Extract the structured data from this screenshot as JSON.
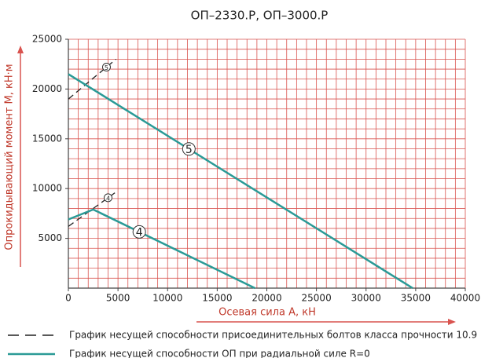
{
  "chart_data": {
    "type": "line",
    "title": "ОП–2330.Р, ОП–3000.Р",
    "x_label": "Осевая сила А, кН",
    "y_label": "Опрокидывающий момент М, кН·м",
    "xlim": [
      0,
      40000
    ],
    "ylim": [
      0,
      25000
    ],
    "xticks": [
      0,
      5000,
      10000,
      15000,
      20000,
      25000,
      30000,
      35000,
      40000
    ],
    "yticks": [
      5000,
      10000,
      15000,
      20000,
      25000
    ],
    "grid": true,
    "minor_grid_step": 1000,
    "grid_color": "#d9534f",
    "series": [
      {
        "name": "График несущей способности присоединительных болтов класса прочности 10.9",
        "color": "#222222",
        "dashed": true,
        "curves": [
          {
            "label": "5",
            "x": [
              0,
              4800
            ],
            "values": [
              19000,
              23000
            ]
          },
          {
            "label": "4",
            "x": [
              0,
              5000
            ],
            "values": [
              6200,
              9800
            ]
          }
        ]
      },
      {
        "name": "График несущей способности ОП при радиальной силе R=0",
        "color": "#2a9a96",
        "dashed": false,
        "curves": [
          {
            "label": "5",
            "x": [
              0,
              34700
            ],
            "values": [
              21500,
              0
            ]
          },
          {
            "label": "4",
            "x": [
              0,
              2500,
              18800
            ],
            "values": [
              6900,
              7900,
              0
            ]
          }
        ]
      }
    ]
  }
}
